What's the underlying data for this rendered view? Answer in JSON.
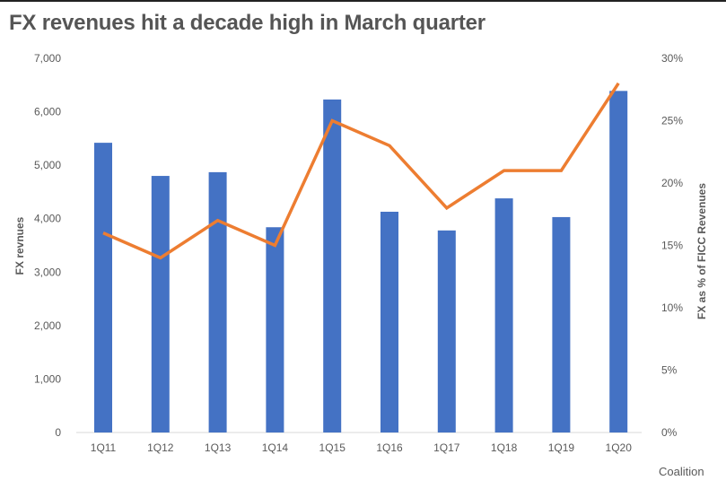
{
  "title": "FX revenues hit a decade high in March quarter",
  "source": "Coalition",
  "colors": {
    "bars": "#4472C4",
    "line": "#ED7D31",
    "text": "#595959",
    "title": "#555555",
    "axis": "#D9D9D9"
  },
  "chart_data": {
    "type": "bar+line",
    "title": "FX revenues hit a decade high in March quarter",
    "categories": [
      "1Q11",
      "1Q12",
      "1Q13",
      "1Q14",
      "1Q15",
      "1Q16",
      "1Q17",
      "1Q18",
      "1Q19",
      "1Q20"
    ],
    "series": [
      {
        "name": "FX revenues",
        "type": "bar",
        "axis": "left",
        "values": [
          5420,
          4800,
          4870,
          3840,
          6230,
          4130,
          3780,
          4380,
          4030,
          6390
        ]
      },
      {
        "name": "FX as % of FICC Revenues",
        "type": "line",
        "axis": "right",
        "values": [
          16,
          14,
          17,
          15,
          25,
          23,
          18,
          21,
          21,
          28
        ]
      }
    ],
    "ylabel": "FX revnues",
    "y2label": "FX as % of FICC Revenues",
    "ylim": [
      0,
      7000
    ],
    "y2lim": [
      0,
      30
    ],
    "yticks": [
      "0",
      "1,000",
      "2,000",
      "3,000",
      "4,000",
      "5,000",
      "6,000",
      "7,000"
    ],
    "y2ticks": [
      "0%",
      "5%",
      "10%",
      "15%",
      "20%",
      "25%",
      "30%"
    ],
    "grid": false,
    "legend": "none"
  }
}
